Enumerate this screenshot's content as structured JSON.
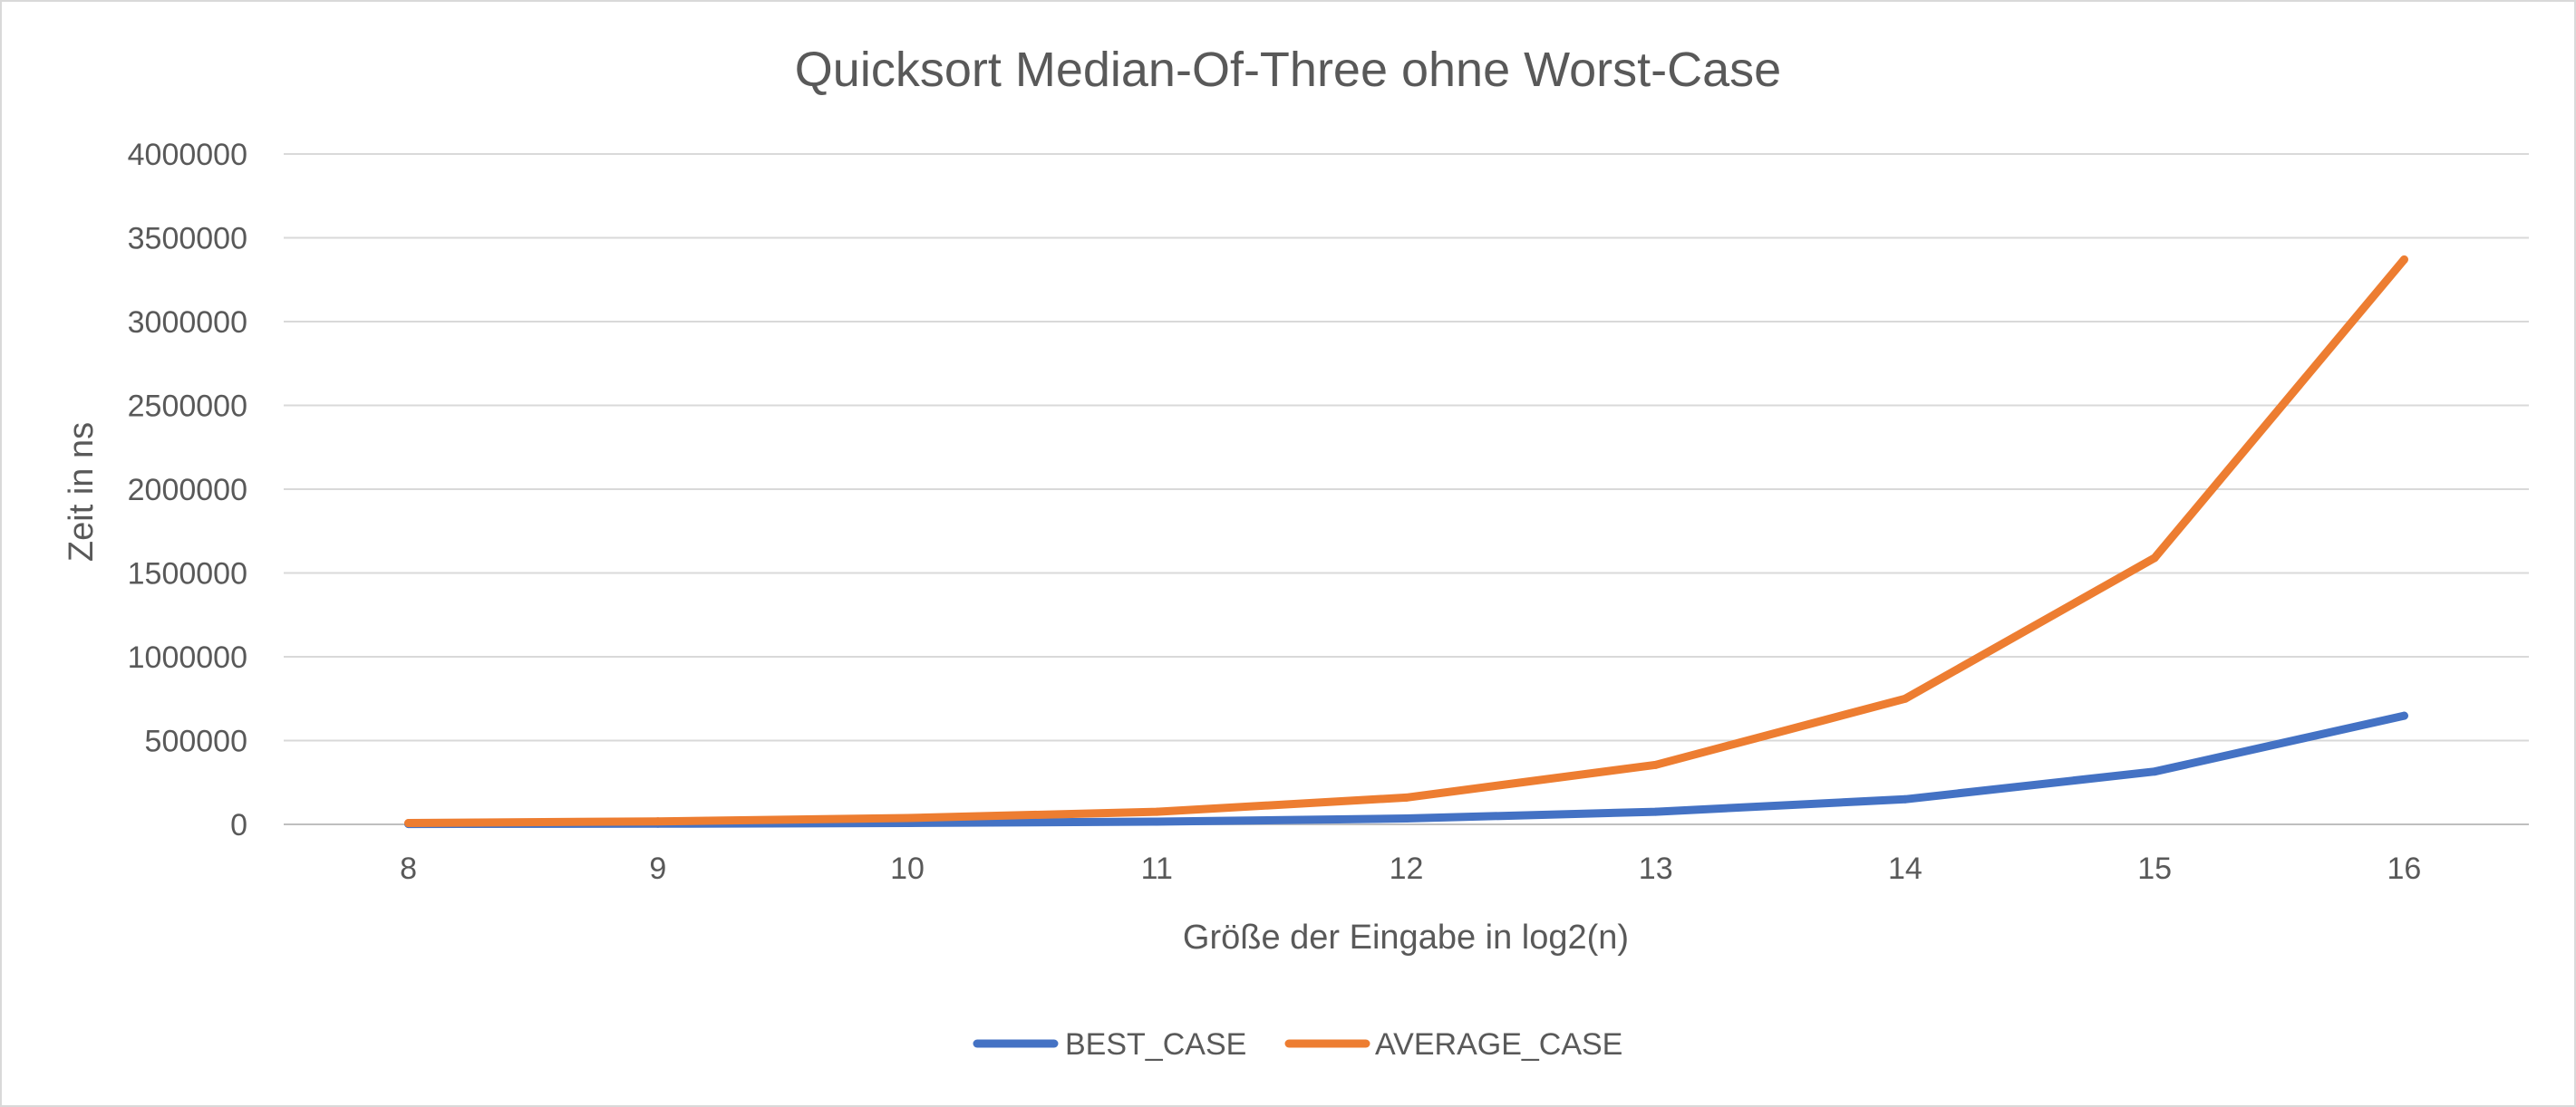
{
  "chart_data": {
    "type": "line",
    "title": "Quicksort Median-Of-Three ohne Worst-Case",
    "xlabel": "Größe der Eingabe in log2(n)",
    "ylabel": "Zeit in ns",
    "categories": [
      "8",
      "9",
      "10",
      "11",
      "12",
      "13",
      "14",
      "15",
      "16"
    ],
    "ylim": [
      0,
      4000000
    ],
    "yticks": [
      "0",
      "500000",
      "1000000",
      "1500000",
      "2000000",
      "2500000",
      "3000000",
      "3500000",
      "4000000"
    ],
    "grid": true,
    "legend_position": "bottom",
    "series": [
      {
        "name": "BEST_CASE",
        "color": "#4472C4",
        "values": [
          2000,
          4000,
          8000,
          16000,
          35000,
          75000,
          150000,
          315000,
          648000
        ]
      },
      {
        "name": "AVERAGE_CASE",
        "color": "#ED7D31",
        "values": [
          8000,
          18000,
          38000,
          75000,
          160000,
          355000,
          750000,
          1590000,
          3370000
        ]
      }
    ]
  }
}
